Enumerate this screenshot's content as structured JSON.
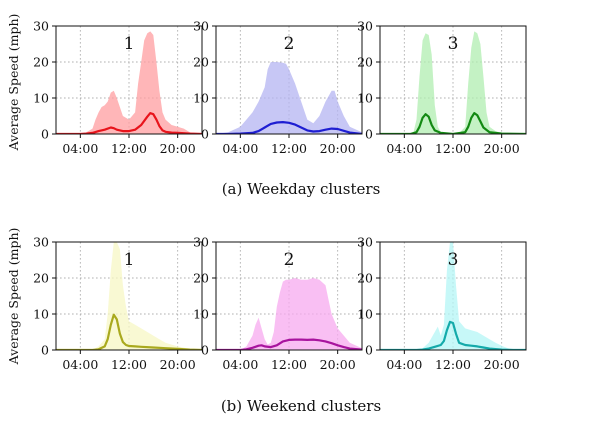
{
  "captions": [
    "(a) Weekday clusters",
    "(b) Weekend clusters"
  ],
  "y_axis_label": "Average Speed (mph)",
  "chart_data": [
    {
      "type": "area",
      "group": 0,
      "label": "1",
      "color": "#e8141c",
      "fill": "#ff9ea0",
      "x_ticks": [
        "04:00",
        "12:00",
        "20:00"
      ],
      "y_ticks": [
        0,
        10,
        20,
        30
      ],
      "ylim": [
        0,
        30
      ],
      "xlim": [
        0,
        24
      ],
      "grid": true,
      "band": {
        "x": [
          0,
          4,
          5,
          6,
          6.5,
          7,
          7.5,
          8,
          8.5,
          9,
          9.5,
          10,
          11,
          12,
          13,
          13.5,
          14,
          14.5,
          15,
          15.5,
          16,
          16.5,
          17,
          17.5,
          18,
          19,
          20,
          21,
          22,
          24
        ],
        "upper": [
          0,
          0,
          0.5,
          1.5,
          4,
          6,
          7.5,
          8,
          9,
          11.5,
          12,
          10,
          5,
          4,
          6,
          14,
          20,
          26,
          28,
          28.5,
          27.5,
          20,
          12,
          6,
          4,
          2.5,
          2,
          1.5,
          0.5,
          0
        ]
      },
      "mean": {
        "x": [
          0,
          4,
          5,
          6,
          7,
          8,
          9,
          9.5,
          10,
          11,
          12,
          13,
          14,
          15,
          15.5,
          16,
          16.5,
          17,
          17.5,
          18,
          19,
          20,
          22,
          24
        ],
        "y": [
          0,
          0,
          0.1,
          0.3,
          0.8,
          1.2,
          1.8,
          1.6,
          1.2,
          0.8,
          0.8,
          1.2,
          2.5,
          4.8,
          5.8,
          5.5,
          4,
          2.2,
          1,
          0.6,
          0.4,
          0.3,
          0.1,
          0
        ]
      }
    },
    {
      "type": "area",
      "group": 0,
      "label": "2",
      "color": "#1e1ed2",
      "fill": "#b4b4f2",
      "x_ticks": [
        "04:00",
        "12:00",
        "20:00"
      ],
      "y_ticks": [
        0,
        10,
        20,
        30
      ],
      "ylim": [
        0,
        30
      ],
      "xlim": [
        0,
        24
      ],
      "grid": true,
      "band": {
        "x": [
          0,
          2,
          4,
          5,
          6,
          7,
          8,
          8.5,
          9,
          10,
          11,
          11.5,
          12,
          13,
          14,
          15,
          16,
          17,
          18,
          19,
          19.5,
          20,
          21,
          22,
          24
        ],
        "upper": [
          0,
          0.5,
          2,
          4,
          6,
          9,
          13,
          18,
          20,
          20,
          19.8,
          19.5,
          18,
          14,
          9,
          4,
          3,
          5,
          9,
          12,
          12,
          9,
          5,
          2,
          0.5
        ]
      },
      "mean": {
        "x": [
          0,
          2,
          4,
          6,
          7,
          8,
          9,
          10,
          11,
          12,
          13,
          14,
          15,
          16,
          17,
          18,
          19,
          20,
          21,
          22,
          24
        ],
        "y": [
          0,
          0,
          0.1,
          0.3,
          0.8,
          1.8,
          2.8,
          3.2,
          3.3,
          3.1,
          2.6,
          1.8,
          1,
          0.7,
          0.8,
          1.2,
          1.5,
          1.4,
          0.9,
          0.4,
          0
        ]
      }
    },
    {
      "type": "area",
      "group": 0,
      "label": "3",
      "color": "#138a13",
      "fill": "#b0eeb0",
      "x_ticks": [
        "04:00",
        "12:00",
        "20:00"
      ],
      "y_ticks": [
        0,
        10,
        20,
        30
      ],
      "ylim": [
        0,
        30
      ],
      "xlim": [
        0,
        24
      ],
      "grid": true,
      "band": {
        "x": [
          0,
          5,
          5.5,
          6,
          6.5,
          7,
          7.5,
          8,
          8.5,
          9,
          9.5,
          10,
          12,
          13,
          14,
          14.5,
          15,
          15.5,
          16,
          16.5,
          17,
          17.5,
          18,
          19,
          20,
          21,
          24
        ],
        "upper": [
          0,
          0,
          0.5,
          4,
          16,
          26,
          28,
          27.5,
          22,
          8,
          2,
          0.5,
          0,
          0.2,
          2,
          14,
          24,
          28.5,
          28,
          25,
          16,
          6,
          2,
          0.8,
          0.3,
          0,
          0
        ]
      },
      "mean": {
        "x": [
          0,
          5,
          6,
          6.5,
          7,
          7.5,
          8,
          8.5,
          9,
          10,
          12,
          14,
          14.5,
          15,
          15.5,
          16,
          16.5,
          17,
          18,
          20,
          24
        ],
        "y": [
          0,
          0,
          0.5,
          2,
          4.5,
          5.5,
          4.8,
          2.5,
          1,
          0.3,
          0,
          0.5,
          2,
          4.5,
          5.8,
          5.2,
          3.5,
          1.8,
          0.5,
          0.1,
          0
        ]
      }
    },
    {
      "type": "area",
      "group": 1,
      "label": "1",
      "color": "#a9a91e",
      "fill": "#f7f7c4",
      "x_ticks": [
        "04:00",
        "12:00",
        "20:00"
      ],
      "y_ticks": [
        0,
        10,
        20,
        30
      ],
      "ylim": [
        0,
        30
      ],
      "xlim": [
        0,
        24
      ],
      "grid": true,
      "band": {
        "x": [
          0,
          6,
          7,
          8,
          8.5,
          9,
          9.5,
          10,
          10.5,
          11,
          11.5,
          12,
          13,
          14,
          15,
          16,
          17,
          18,
          19,
          20,
          22,
          24
        ],
        "upper": [
          0,
          0,
          1,
          3,
          10,
          22,
          30,
          30,
          28,
          18,
          12,
          8,
          7,
          6,
          5,
          4,
          3,
          2,
          1.5,
          1,
          0.3,
          0
        ]
      },
      "mean": {
        "x": [
          0,
          6,
          7,
          8,
          8.5,
          9,
          9.5,
          10,
          10.5,
          11,
          11.5,
          12,
          13,
          14,
          16,
          18,
          20,
          22,
          24
        ],
        "y": [
          0,
          0,
          0.2,
          1,
          3,
          7,
          9.8,
          8.5,
          4.5,
          2.2,
          1.4,
          1.1,
          1,
          0.9,
          0.7,
          0.5,
          0.3,
          0.1,
          0
        ]
      }
    },
    {
      "type": "area",
      "group": 1,
      "label": "2",
      "color": "#a8149e",
      "fill": "#f7aaef",
      "x_ticks": [
        "04:00",
        "12:00",
        "20:00"
      ],
      "y_ticks": [
        0,
        10,
        20,
        30
      ],
      "ylim": [
        0,
        30
      ],
      "xlim": [
        0,
        24
      ],
      "grid": true,
      "band": {
        "x": [
          0,
          4,
          5,
          6,
          6.5,
          7,
          7.5,
          8,
          8.5,
          9,
          9.5,
          10,
          10.5,
          11,
          11.5,
          12,
          13,
          14,
          15,
          16,
          17,
          18,
          18.5,
          19,
          20,
          21,
          22,
          24
        ],
        "upper": [
          0,
          0,
          1,
          4,
          7,
          9,
          6,
          3,
          1.5,
          2,
          5,
          12,
          16,
          19,
          19.5,
          19.5,
          20,
          19.5,
          19.5,
          20,
          19.5,
          18,
          14,
          10,
          6,
          4,
          2,
          0.5
        ]
      },
      "mean": {
        "x": [
          0,
          4,
          5,
          6,
          7,
          7.5,
          8,
          9,
          10,
          11,
          12,
          13,
          14,
          15,
          16,
          17,
          18,
          19,
          20,
          21,
          22,
          24
        ],
        "y": [
          0,
          0,
          0.2,
          0.6,
          1.2,
          1.3,
          1,
          0.8,
          1.3,
          2.4,
          2.8,
          2.9,
          2.9,
          2.8,
          2.9,
          2.7,
          2.4,
          1.9,
          1.3,
          0.8,
          0.4,
          0.1
        ]
      }
    },
    {
      "type": "area",
      "group": 1,
      "label": "3",
      "color": "#14aaaa",
      "fill": "#b4f5f5",
      "x_ticks": [
        "04:00",
        "12:00",
        "20:00"
      ],
      "y_ticks": [
        0,
        10,
        20,
        30
      ],
      "ylim": [
        0,
        30
      ],
      "xlim": [
        0,
        24
      ],
      "grid": true,
      "band": {
        "x": [
          0,
          6,
          7,
          8,
          9,
          9.5,
          10,
          10.5,
          11,
          11.5,
          12,
          12.5,
          13,
          14,
          15,
          16,
          17,
          18,
          19,
          20,
          21,
          22,
          24
        ],
        "upper": [
          0,
          0,
          0.5,
          2,
          5,
          6.5,
          4,
          7,
          22,
          31,
          31,
          18,
          8,
          6,
          5.5,
          5,
          4,
          3,
          2,
          1.2,
          0.5,
          0.2,
          0
        ]
      },
      "mean": {
        "x": [
          0,
          6,
          7,
          8,
          9,
          10,
          10.5,
          11,
          11.5,
          12,
          12.5,
          13,
          14,
          15,
          16,
          17,
          18,
          20,
          22,
          24
        ],
        "y": [
          0,
          0,
          0.1,
          0.4,
          0.9,
          1.4,
          2.5,
          5.5,
          7.8,
          7.5,
          4.5,
          2,
          1.4,
          1.2,
          1,
          0.7,
          0.4,
          0.1,
          0,
          0
        ]
      }
    }
  ]
}
